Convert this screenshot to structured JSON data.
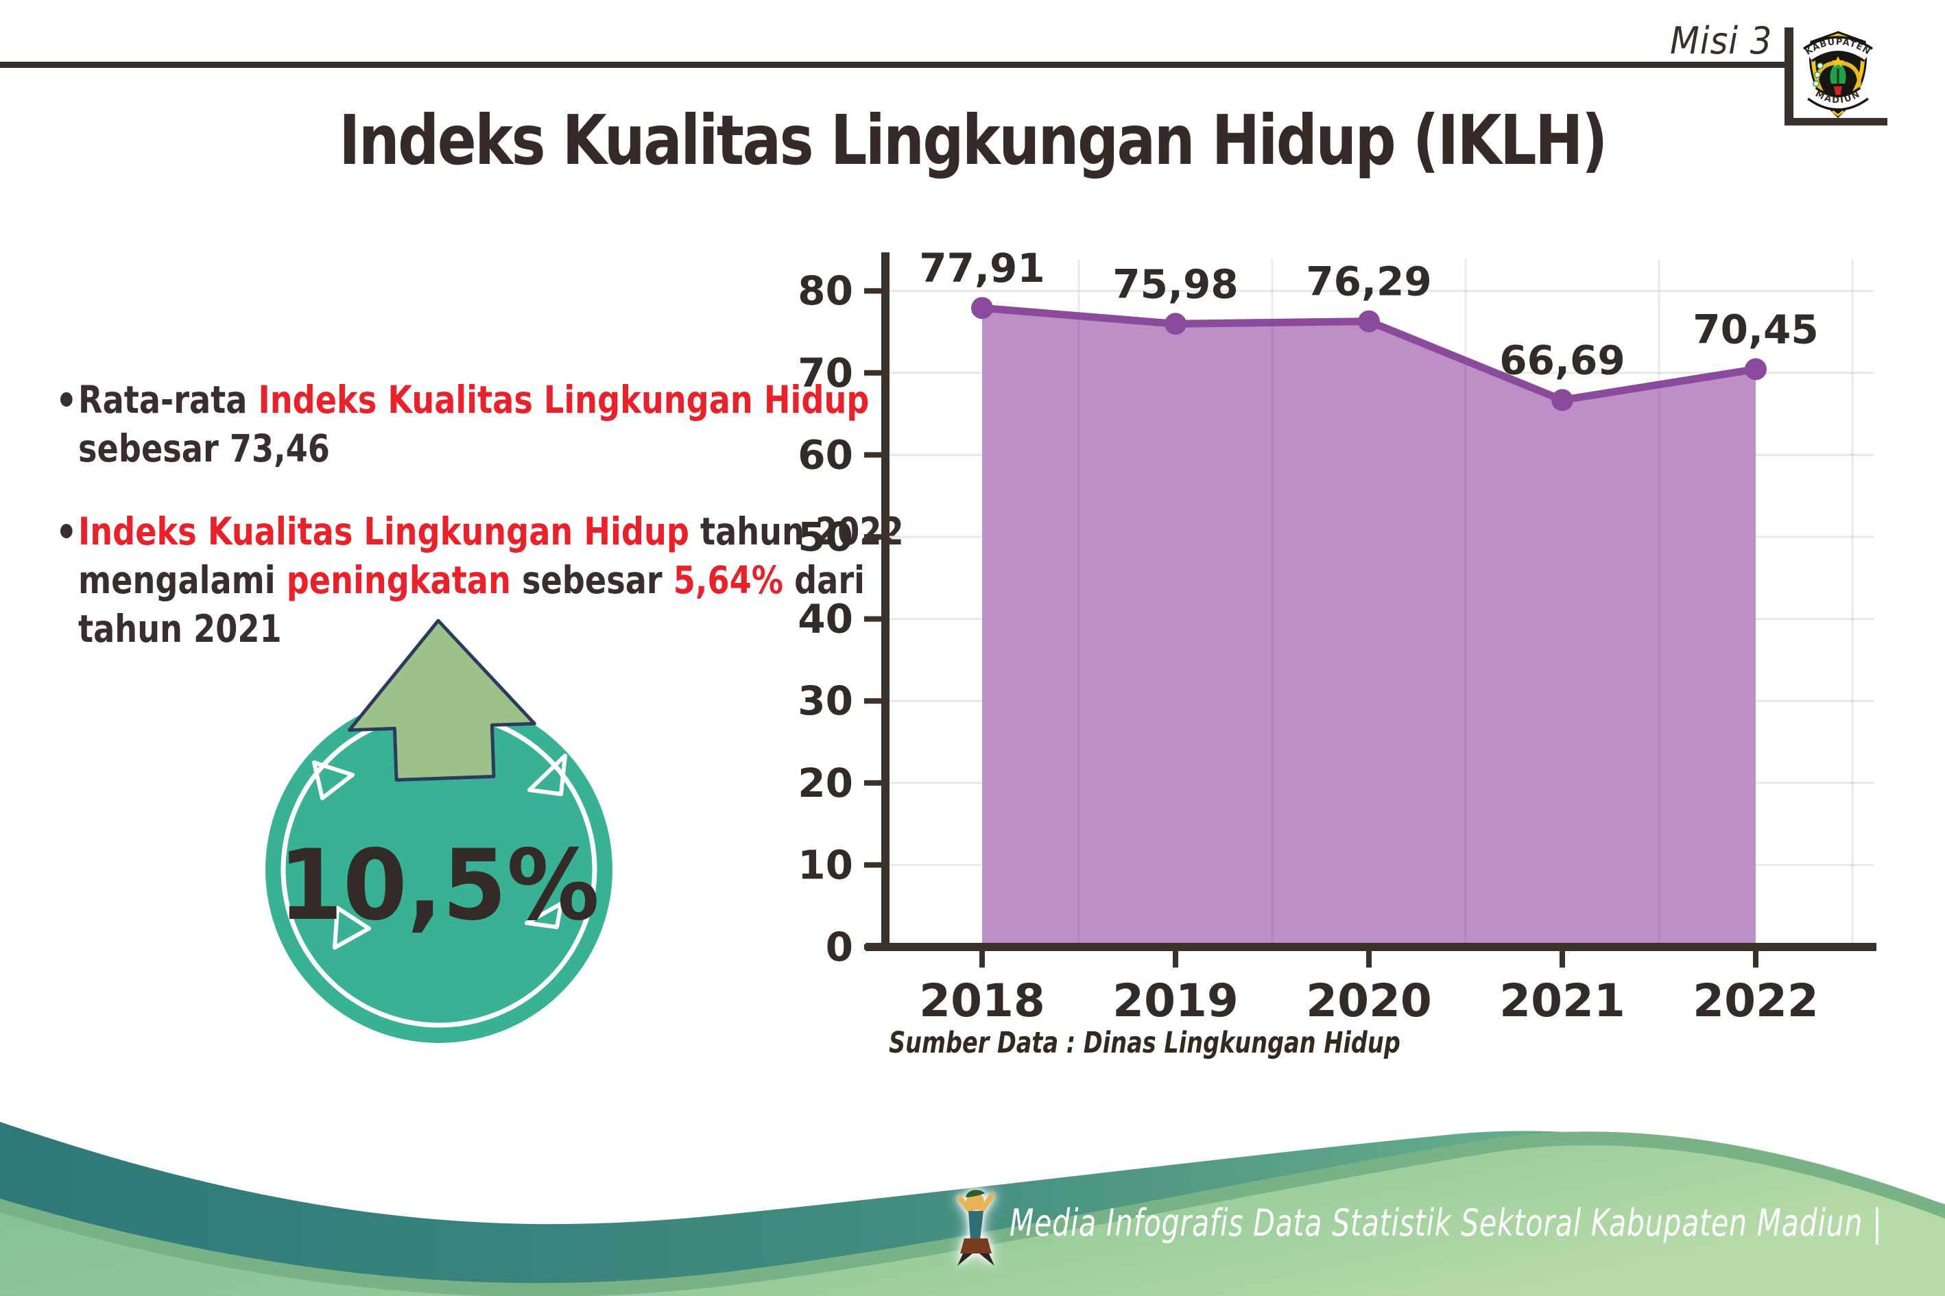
{
  "header": {
    "misi_label": "Misi 3",
    "logo": {
      "arc_top": "KABUPATEN",
      "arc_bottom": "MADIUN"
    }
  },
  "title": "Indeks Kualitas Lingkungan Hidup (IKLH)",
  "bullets": {
    "dot": "•",
    "b1_l1_dark": "Rata-rata ",
    "b1_l1_red": "Indeks Kualitas Lingkungan Hidup",
    "b1_l2": "sebesar 73,46",
    "b2_l1_red": "Indeks Kualitas Lingkungan Hidup",
    "b2_l1_dark": " tahun 2022",
    "b2_l2_a": "mengalami ",
    "b2_l2_b": "peningkatan",
    "b2_l2_c": " sebesar ",
    "b2_l2_d": "5,64%",
    "b2_l2_e": " dari",
    "b2_l3": "tahun 2021"
  },
  "badge": {
    "value": "10,5%",
    "circle_color": "#38b194",
    "arrow_color": "#9cc289",
    "arrow_outline": "#2c3a60"
  },
  "chart_data": {
    "type": "area",
    "title": "",
    "xlabel": "",
    "ylabel": "",
    "categories": [
      "2018",
      "2019",
      "2020",
      "2021",
      "2022"
    ],
    "values": [
      77.91,
      75.98,
      76.29,
      66.69,
      70.45
    ],
    "point_labels": [
      "77,91",
      "75,98",
      "76,29",
      "66,69",
      "70,45"
    ],
    "yticks": [
      0,
      10,
      20,
      30,
      40,
      50,
      60,
      70,
      80
    ],
    "ytick_labels": [
      "0",
      "10",
      "20",
      "30",
      "40",
      "50",
      "60",
      "70",
      "80"
    ],
    "ylim": [
      0,
      84
    ],
    "grid": true,
    "legend": "none",
    "area_color": "#bc90c7",
    "line_color": "#8b4a9c",
    "source_note": "Sumber Data : Dinas Lingkungan Hidup"
  },
  "footer": {
    "credit": "Media Infografis Data Statistik Sektoral Kabupaten Madiun |"
  },
  "colors": {
    "accent_red": "#e8212b",
    "text_dark": "#362b27",
    "teal_wave": "#2f797b",
    "medium_green_rim": "#79b286",
    "light_green_wave": "#8cc497"
  }
}
